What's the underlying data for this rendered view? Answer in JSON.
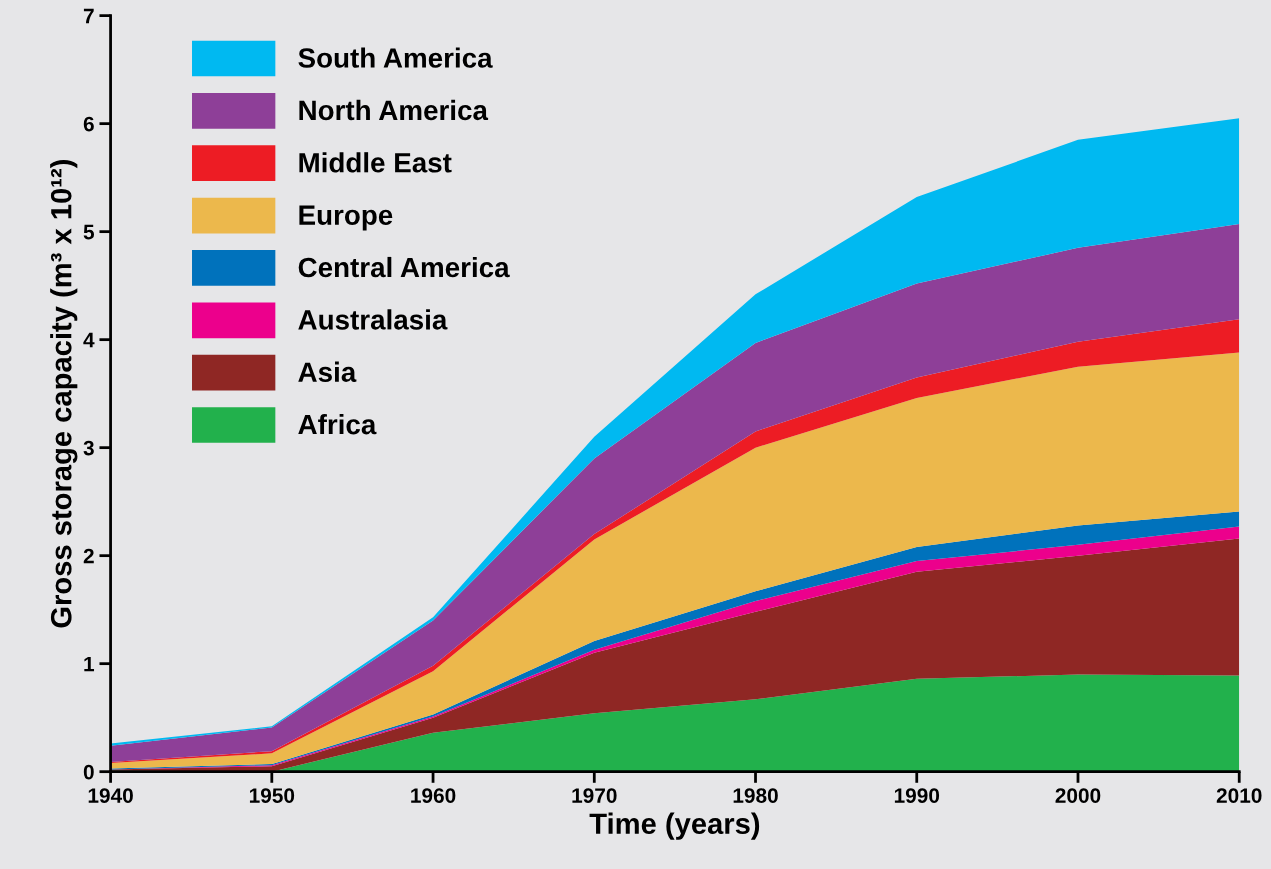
{
  "chart_data": {
    "type": "area",
    "stacked": true,
    "xlabel": "Time (years)",
    "ylabel": "Gross storage capacity (m³ x 10¹²)",
    "x": [
      1940,
      1950,
      1960,
      1970,
      1980,
      1990,
      2000,
      2010
    ],
    "xlim": [
      1940,
      2010
    ],
    "xticks": [
      1940,
      1950,
      1960,
      1970,
      1980,
      1990,
      2000,
      2010
    ],
    "ylim": [
      0,
      7
    ],
    "yticks": [
      0,
      1,
      2,
      3,
      4,
      5,
      6,
      7
    ],
    "grid": false,
    "legend": "top left",
    "series": [
      {
        "name": "Africa",
        "color": "#22b14c",
        "values": [
          0.01,
          0,
          0.36,
          0.54,
          0.67,
          0.86,
          0.9,
          0.89
        ]
      },
      {
        "name": "Asia",
        "color": "#8f2724",
        "values": [
          0.01,
          0.05,
          0.14,
          0.56,
          0.81,
          0.99,
          1.1,
          1.27
        ]
      },
      {
        "name": "Australasia",
        "color": "#ec008c",
        "values": [
          0,
          0.01,
          0.01,
          0.03,
          0.1,
          0.1,
          0.1,
          0.11
        ]
      },
      {
        "name": "Central America",
        "color": "#0072bc",
        "values": [
          0.01,
          0.01,
          0.02,
          0.08,
          0.09,
          0.13,
          0.18,
          0.14
        ]
      },
      {
        "name": "Europe",
        "color": "#ecb84c",
        "values": [
          0.05,
          0.1,
          0.4,
          0.94,
          1.33,
          1.38,
          1.47,
          1.47
        ]
      },
      {
        "name": "Middle East",
        "color": "#ed1c24",
        "values": [
          0.01,
          0.02,
          0.05,
          0.05,
          0.15,
          0.19,
          0.23,
          0.31
        ]
      },
      {
        "name": "North America",
        "color": "#8e3f98",
        "values": [
          0.15,
          0.22,
          0.42,
          0.7,
          0.82,
          0.87,
          0.87,
          0.88
        ]
      },
      {
        "name": "South America",
        "color": "#00b9f1",
        "values": [
          0.02,
          0.01,
          0.03,
          0.2,
          0.45,
          0.8,
          1.0,
          0.98
        ]
      }
    ]
  }
}
